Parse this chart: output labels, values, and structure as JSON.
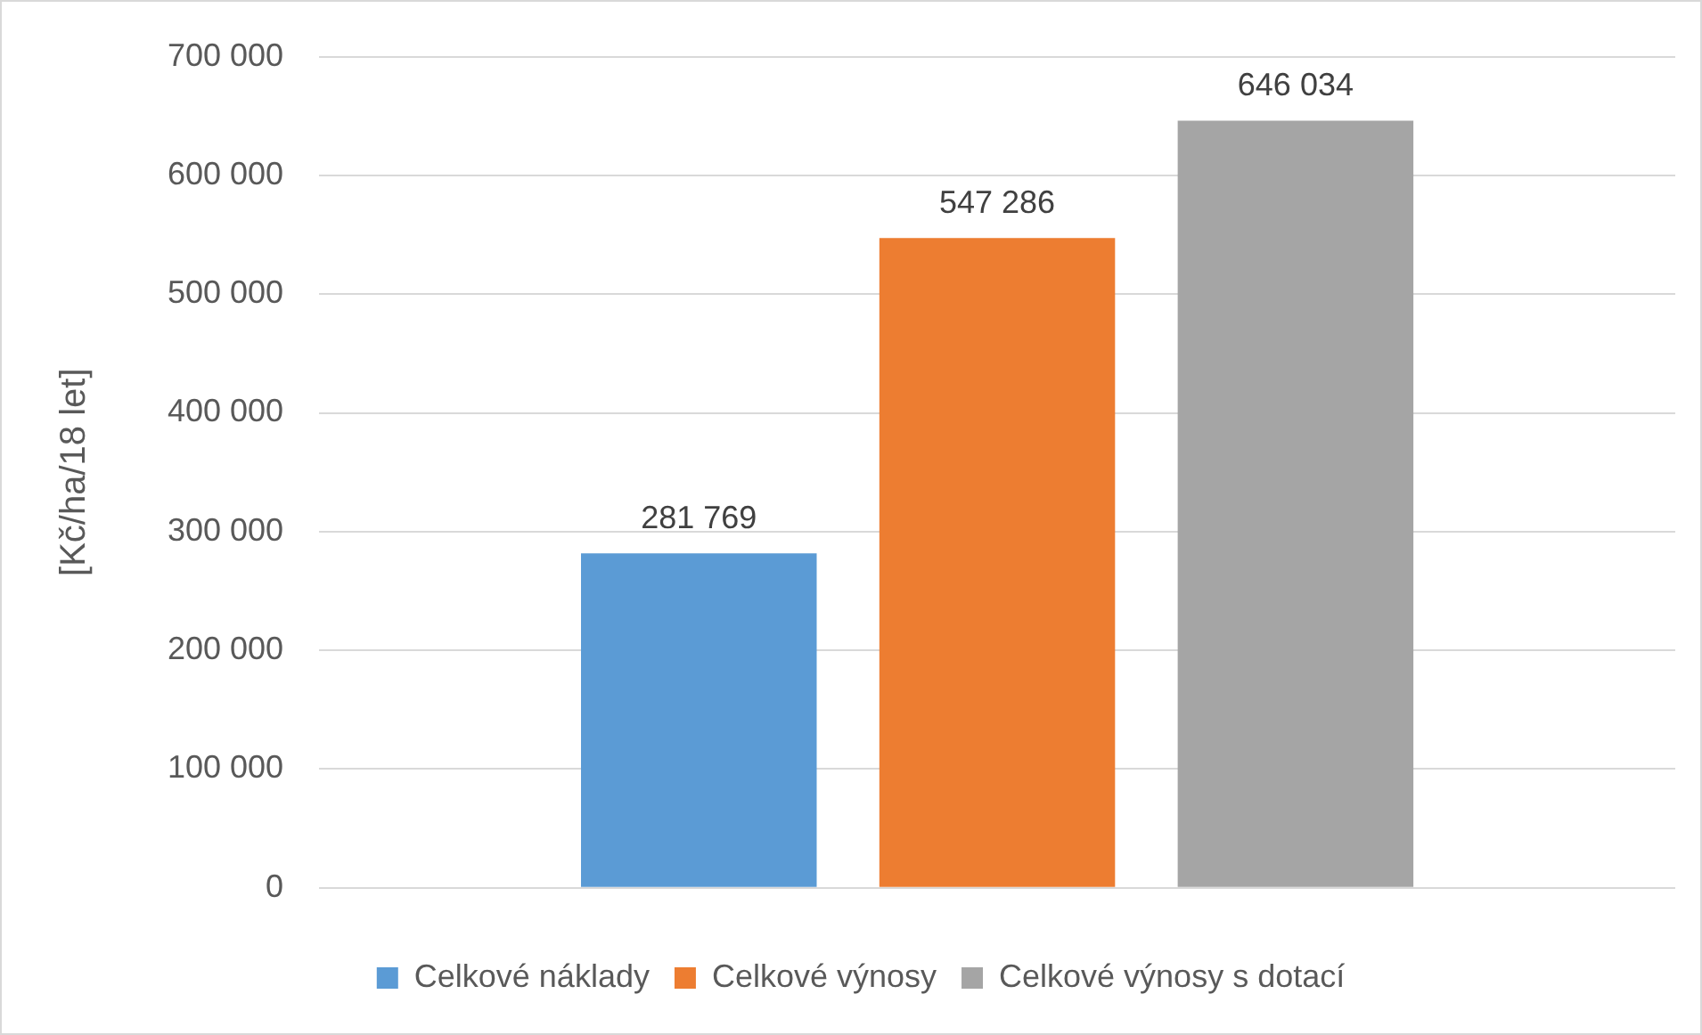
{
  "chart_data": {
    "type": "bar",
    "ylabel": "[Kč/ha/18 let]",
    "categories": [
      null
    ],
    "series": [
      {
        "name": "Celkové náklady",
        "color": "#5b9bd5",
        "values": [
          281769
        ],
        "value_labels": [
          "281 769"
        ]
      },
      {
        "name": "Celkové výnosy",
        "color": "#ed7d31",
        "values": [
          547286
        ],
        "value_labels": [
          "547 286"
        ]
      },
      {
        "name": "Celkové výnosy s dotací",
        "color": "#a5a5a5",
        "values": [
          646034
        ],
        "value_labels": [
          "646 034"
        ]
      }
    ],
    "ylim": [
      0,
      700000
    ],
    "yticks": [
      {
        "value": 0,
        "label": "0"
      },
      {
        "value": 100000,
        "label": "100 000"
      },
      {
        "value": 200000,
        "label": "200 000"
      },
      {
        "value": 300000,
        "label": "300 000"
      },
      {
        "value": 400000,
        "label": "400 000"
      },
      {
        "value": 500000,
        "label": "500 000"
      },
      {
        "value": 600000,
        "label": "600 000"
      },
      {
        "value": 700000,
        "label": "700 000"
      }
    ],
    "grid": "y",
    "legend": "bottom"
  }
}
